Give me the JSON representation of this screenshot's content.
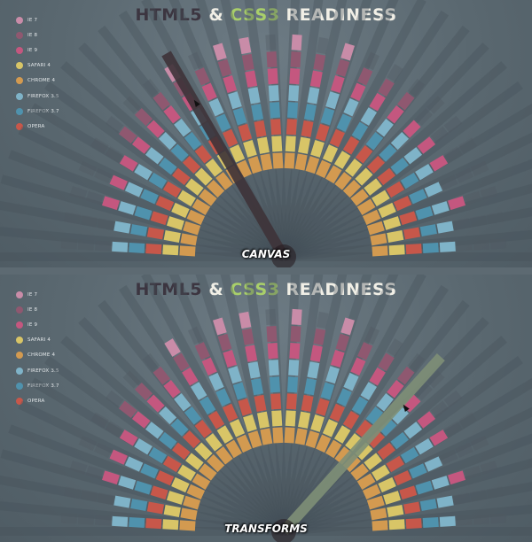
{
  "title": {
    "part1": "HTML5",
    "part2": " & ",
    "part3": "CSS3",
    "part4": " READINESS"
  },
  "legend": [
    {
      "label": "IE 7",
      "color": "#c98ca8"
    },
    {
      "label": "IE 8",
      "color": "#8f5870"
    },
    {
      "label": "IE 9",
      "color": "#c4577f"
    },
    {
      "label": "SAFARI 4",
      "color": "#d8c567"
    },
    {
      "label": "CHROME 4",
      "color": "#d39a50"
    },
    {
      "label": "FIREFOX 3.5",
      "color": "#7fb3c8"
    },
    {
      "label": "FIREFOX 3.7",
      "color": "#4f92ad"
    },
    {
      "label": "OPERA",
      "color": "#c7574a"
    }
  ],
  "panels": [
    {
      "feature": "CANVAS",
      "pointer_color": "#3e3338",
      "pointer_angle_deg": 120
    },
    {
      "feature": "TRANSFORMS",
      "pointer_color": "#7e8f77",
      "pointer_angle_deg": 48
    }
  ]
}
